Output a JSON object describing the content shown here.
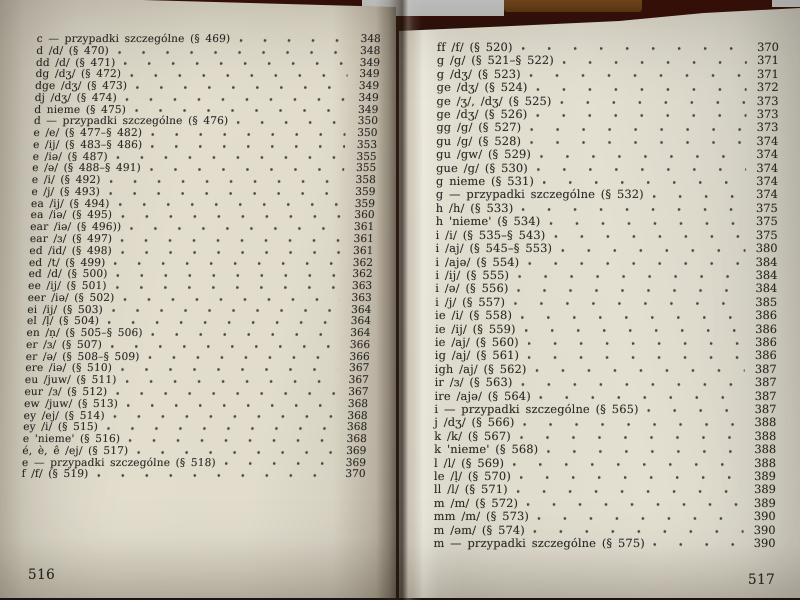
{
  "photo_description": "open book spread, table of contents",
  "colors": {
    "paper": "#e3decf",
    "ink": "#2b2a26",
    "cover_dark_red": "#3a100a",
    "spine_brown": "#6b4218",
    "paper_edge_light": "#d3d5d6"
  },
  "left_page": {
    "page_number": "516",
    "entries": [
      {
        "label": "c — przypadki szczególne (§ 469)",
        "page": "348"
      },
      {
        "label": "d /d/ (§ 470)",
        "page": "348"
      },
      {
        "label": "dd /d/ (§ 471)",
        "page": "349"
      },
      {
        "label": "dg /dʒ/ (§ 472)",
        "page": "349"
      },
      {
        "label": "dge /dʒ/ (§ 473)",
        "page": "349"
      },
      {
        "label": "dj /dʒ/ (§ 474)",
        "page": "349"
      },
      {
        "label": "d nieme (§ 475)",
        "page": "349"
      },
      {
        "label": "d — przypadki szczególne (§ 476)",
        "page": "350"
      },
      {
        "label": "e /e/ (§ 477–§ 482)",
        "page": "350"
      },
      {
        "label": "e /ij/ (§ 483–§ 486)",
        "page": "353"
      },
      {
        "label": "e /iə/ (§ 487)",
        "page": "355"
      },
      {
        "label": "e /ə/ (§ 488–§ 491)",
        "page": "355"
      },
      {
        "label": "e /i/ (§ 492)",
        "page": "358"
      },
      {
        "label": "e /j/ (§ 493)",
        "page": "359"
      },
      {
        "label": "ea /ij/ (§ 494)",
        "page": "359"
      },
      {
        "label": "ea /iə/ (§ 495)",
        "page": "360"
      },
      {
        "label": "ear /iə/ (§ 496))",
        "page": "361"
      },
      {
        "label": "ear /ɜ/ (§ 497)",
        "page": "361"
      },
      {
        "label": "ed /id/ (§ 498)",
        "page": "361"
      },
      {
        "label": "ed /t/ (§ 499)",
        "page": "362"
      },
      {
        "label": "ed /d/ (§ 500)",
        "page": "362"
      },
      {
        "label": "ee /ij/ (§ 501)",
        "page": "363"
      },
      {
        "label": "eer /iə/ (§ 502)",
        "page": "363"
      },
      {
        "label": "ei /ij/ (§ 503)",
        "page": "364"
      },
      {
        "label": "el /ḷ/ (§ 504)",
        "page": "364"
      },
      {
        "label": "en /ṇ/ (§ 505–§ 506)",
        "page": "364"
      },
      {
        "label": "er /ɜ/ (§ 507)",
        "page": "366"
      },
      {
        "label": "er /ə/ (§ 508–§ 509)",
        "page": "366"
      },
      {
        "label": "ere /iə/ (§ 510)",
        "page": "367"
      },
      {
        "label": "eu /juw/ (§ 511)",
        "page": "367"
      },
      {
        "label": "eur /ɜ/ (§ 512)",
        "page": "367"
      },
      {
        "label": "ew /juw/ (§ 513)",
        "page": "368"
      },
      {
        "label": "ey /ej/ (§ 514)",
        "page": "368"
      },
      {
        "label": "ey /i/ (§ 515)",
        "page": "368"
      },
      {
        "label": "e 'nieme' (§ 516)",
        "page": "368"
      },
      {
        "label": "é, è, ê /ej/ (§ 517)",
        "page": "369"
      },
      {
        "label": "e — przypadki szczególne (§ 518)",
        "page": "369"
      },
      {
        "label": "f /f/ (§ 519)",
        "page": "370"
      }
    ]
  },
  "right_page": {
    "page_number": "517",
    "entries": [
      {
        "label": "ff /f/ (§ 520)",
        "page": "370"
      },
      {
        "label": "g /g/ (§ 521–§ 522)",
        "page": "371"
      },
      {
        "label": "g /dʒ/ (§ 523)",
        "page": "371"
      },
      {
        "label": "ge /dʒ/ (§ 524)",
        "page": "372"
      },
      {
        "label": "ge /ʒ/, /dʒ/ (§ 525)",
        "page": "373"
      },
      {
        "label": "ge /dʒ/ (§ 526)",
        "page": "373"
      },
      {
        "label": "gg /g/ (§ 527)",
        "page": "373"
      },
      {
        "label": "gu /g/ (§ 528)",
        "page": "374"
      },
      {
        "label": "gu /gw/ (§ 529)",
        "page": "374"
      },
      {
        "label": "gue /g/ (§ 530)",
        "page": "374"
      },
      {
        "label": "g nieme (§ 531)",
        "page": "374"
      },
      {
        "label": "g — przypadki szczególne (§ 532)",
        "page": "374"
      },
      {
        "label": "h /h/ (§ 533)",
        "page": "375"
      },
      {
        "label": "h 'nieme' (§ 534)",
        "page": "375"
      },
      {
        "label": "i /i/ (§ 535–§ 543)",
        "page": "375"
      },
      {
        "label": "i /aj/ (§ 545–§ 553)",
        "page": "380"
      },
      {
        "label": "i /ajə/ (§ 554)",
        "page": "384"
      },
      {
        "label": "i /ij/ (§ 555)",
        "page": "384"
      },
      {
        "label": "i /ə/ (§ 556)",
        "page": "384"
      },
      {
        "label": "i /j/ (§ 557)",
        "page": "385"
      },
      {
        "label": "ie /i/ (§ 558)",
        "page": "386"
      },
      {
        "label": "ie /ij/ (§ 559)",
        "page": "386"
      },
      {
        "label": "ie /aj/ (§ 560)",
        "page": "386"
      },
      {
        "label": "ig /aj/ (§ 561)",
        "page": "386"
      },
      {
        "label": "igh /aj/ (§ 562)",
        "page": "387"
      },
      {
        "label": "ir /ɜ/ (§ 563)",
        "page": "387"
      },
      {
        "label": "ire /ajə/ (§ 564)",
        "page": "387"
      },
      {
        "label": "i — przypadki szczególne (§ 565)",
        "page": "387"
      },
      {
        "label": "j /dʒ/ (§ 566)",
        "page": "388"
      },
      {
        "label": "k /k/ (§ 567)",
        "page": "388"
      },
      {
        "label": "k 'nieme' (§ 568)",
        "page": "388"
      },
      {
        "label": "l /l/ (§ 569)",
        "page": "388"
      },
      {
        "label": "le /ḷ/ (§ 570)",
        "page": "389"
      },
      {
        "label": "ll /l/ (§ 571)",
        "page": "389"
      },
      {
        "label": "m /m/ (§ 572)",
        "page": "389"
      },
      {
        "label": "mm /m/ (§ 573)",
        "page": "390"
      },
      {
        "label": "m /əm/ (§ 574)",
        "page": "390"
      },
      {
        "label": "m — przypadki szczególne (§ 575)",
        "page": "390"
      }
    ]
  }
}
